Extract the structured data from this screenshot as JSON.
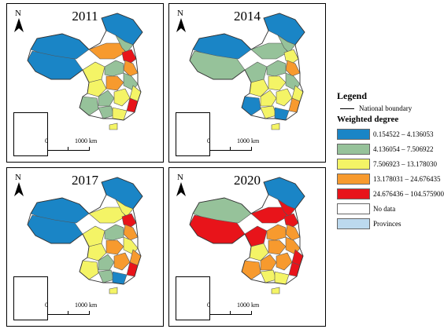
{
  "panels": [
    {
      "year": "2011",
      "scale_zero": "0",
      "scale_label": "1000 km",
      "region_classes": [
        1,
        1,
        4,
        2,
        1,
        3,
        5,
        4,
        2,
        3,
        4,
        2,
        3,
        2,
        3,
        5,
        2,
        2,
        3,
        3
      ]
    },
    {
      "year": "2014",
      "scale_zero": "0",
      "scale_label": "1000 km",
      "region_classes": [
        1,
        1,
        2,
        2,
        2,
        2,
        3,
        4,
        2,
        3,
        3,
        2,
        3,
        3,
        3,
        4,
        1,
        3,
        1,
        3
      ]
    },
    {
      "year": "2017",
      "scale_zero": "0",
      "scale_label": "1000 km",
      "region_classes": [
        1,
        1,
        3,
        3,
        1,
        3,
        5,
        4,
        2,
        3,
        4,
        3,
        4,
        2,
        4,
        5,
        3,
        2,
        1,
        3
      ]
    },
    {
      "year": "2020",
      "scale_zero": "0",
      "scale_label": "1000 km",
      "region_classes": [
        1,
        2,
        5,
        5,
        5,
        5,
        5,
        4,
        4,
        3,
        4,
        4,
        5,
        4,
        4,
        5,
        4,
        3,
        3,
        3
      ]
    }
  ],
  "north_label": "N",
  "legend": {
    "title": "Legend",
    "boundary_label": "National boundary",
    "subtitle": "Weighted degree",
    "classes": [
      {
        "label": "0.154522 – 4.136053",
        "color": "#1a85c6"
      },
      {
        "label": "4.136054 – 7.506922",
        "color": "#96c29a"
      },
      {
        "label": "7.506923 – 13.178030",
        "color": "#f4f466"
      },
      {
        "label": "13.178031 – 24.676435",
        "color": "#f79a2e"
      },
      {
        "label": "24.676436 – 104.575900",
        "color": "#e8141a"
      },
      {
        "label": "No data",
        "color": "#ffffff"
      },
      {
        "label": "Provinces",
        "color": "#bcd9ee"
      }
    ]
  }
}
